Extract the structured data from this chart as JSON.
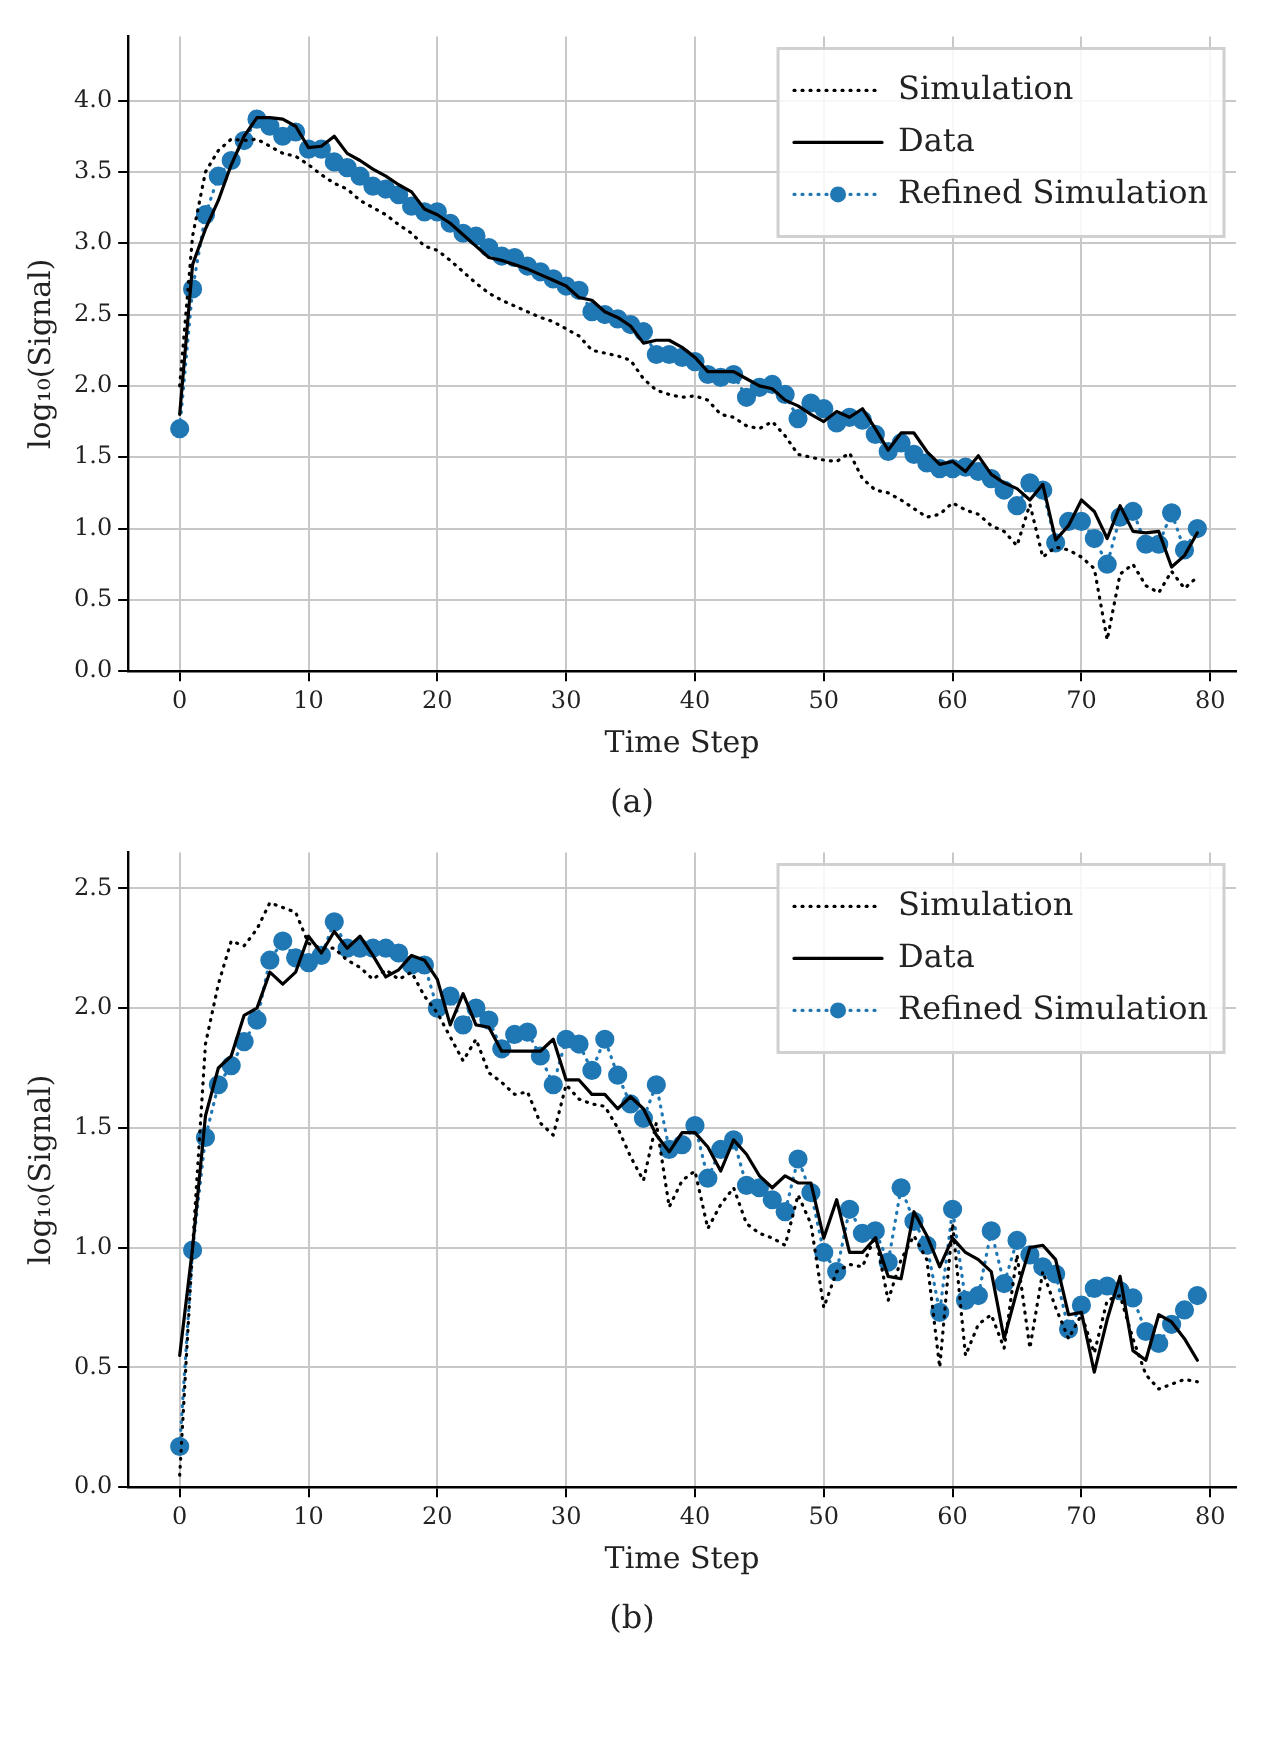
{
  "chart_data": [
    {
      "type": "line",
      "xlabel": "Time Step",
      "ylabel": "log₁₀(Signal)",
      "annotations": [
        "(a)"
      ],
      "grid": true,
      "legend": "top right",
      "xlim": [
        -4,
        82
      ],
      "xticks": [
        0,
        10,
        20,
        30,
        40,
        50,
        60,
        70,
        80
      ],
      "ylim": [
        0,
        4.45
      ],
      "yticks": [
        {
          "value": 0,
          "label": "0.0"
        },
        {
          "value": 0.5,
          "label": "0.5"
        },
        {
          "value": 1,
          "label": "1.0"
        },
        {
          "value": 1.5,
          "label": "1.5"
        },
        {
          "value": 2,
          "label": "2.0"
        },
        {
          "value": 2.5,
          "label": "2.5"
        },
        {
          "value": 3,
          "label": "3.0"
        },
        {
          "value": 3.5,
          "label": "3.5"
        },
        {
          "value": 4,
          "label": "4.0"
        }
      ],
      "x": [
        0,
        1,
        2,
        3,
        4,
        5,
        6,
        7,
        8,
        9,
        10,
        11,
        12,
        13,
        14,
        15,
        16,
        17,
        18,
        19,
        20,
        21,
        22,
        23,
        24,
        25,
        26,
        27,
        28,
        29,
        30,
        31,
        32,
        33,
        34,
        35,
        36,
        37,
        38,
        39,
        40,
        41,
        42,
        43,
        44,
        45,
        46,
        47,
        48,
        49,
        50,
        51,
        52,
        53,
        54,
        55,
        56,
        57,
        58,
        59,
        60,
        61,
        62,
        63,
        64,
        65,
        66,
        67,
        68,
        69,
        70,
        71,
        72,
        73,
        74,
        75,
        76,
        77,
        78,
        79
      ],
      "series": [
        {
          "name": "Simulation",
          "color": "#000000",
          "line_style": "dotted",
          "marker": "none",
          "values": [
            2.0,
            3.05,
            3.5,
            3.65,
            3.73,
            3.72,
            3.73,
            3.68,
            3.63,
            3.61,
            3.55,
            3.48,
            3.42,
            3.38,
            3.3,
            3.25,
            3.2,
            3.13,
            3.07,
            2.98,
            2.95,
            2.88,
            2.8,
            2.72,
            2.65,
            2.6,
            2.56,
            2.52,
            2.48,
            2.45,
            2.4,
            2.35,
            2.25,
            2.23,
            2.21,
            2.18,
            2.05,
            1.97,
            1.94,
            1.92,
            1.93,
            1.9,
            1.8,
            1.78,
            1.72,
            1.7,
            1.75,
            1.65,
            1.52,
            1.5,
            1.48,
            1.47,
            1.53,
            1.35,
            1.27,
            1.25,
            1.2,
            1.14,
            1.08,
            1.1,
            1.18,
            1.13,
            1.1,
            1.02,
            0.98,
            0.88,
            1.17,
            0.8,
            0.87,
            0.85,
            0.8,
            0.72,
            0.22,
            0.68,
            0.75,
            0.6,
            0.55,
            0.7,
            0.58,
            0.66
          ]
        },
        {
          "name": "Data",
          "color": "#000000",
          "line_style": "solid",
          "marker": "none",
          "values": [
            1.8,
            2.85,
            3.1,
            3.3,
            3.55,
            3.75,
            3.88,
            3.88,
            3.87,
            3.82,
            3.67,
            3.68,
            3.75,
            3.63,
            3.58,
            3.52,
            3.47,
            3.41,
            3.36,
            3.24,
            3.2,
            3.14,
            3.06,
            2.98,
            2.9,
            2.88,
            2.85,
            2.82,
            2.78,
            2.74,
            2.7,
            2.62,
            2.6,
            2.52,
            2.48,
            2.42,
            2.3,
            2.32,
            2.32,
            2.27,
            2.2,
            2.1,
            2.1,
            2.1,
            2.05,
            2.0,
            1.98,
            1.9,
            1.86,
            1.8,
            1.75,
            1.82,
            1.78,
            1.84,
            1.7,
            1.55,
            1.67,
            1.67,
            1.54,
            1.45,
            1.47,
            1.4,
            1.51,
            1.38,
            1.32,
            1.28,
            1.2,
            1.31,
            0.92,
            1.02,
            1.2,
            1.12,
            0.93,
            1.16,
            0.98,
            0.97,
            0.98,
            0.73,
            0.81,
            0.97
          ]
        },
        {
          "name": "Refined Simulation",
          "color": "#1f77b4",
          "line_style": "dotted",
          "marker": "circle",
          "values": [
            1.7,
            2.68,
            3.2,
            3.47,
            3.58,
            3.72,
            3.87,
            3.82,
            3.75,
            3.78,
            3.66,
            3.66,
            3.57,
            3.53,
            3.47,
            3.4,
            3.38,
            3.34,
            3.26,
            3.22,
            3.22,
            3.14,
            3.07,
            3.05,
            2.97,
            2.91,
            2.9,
            2.84,
            2.8,
            2.75,
            2.7,
            2.67,
            2.52,
            2.5,
            2.47,
            2.43,
            2.38,
            2.22,
            2.22,
            2.2,
            2.17,
            2.08,
            2.06,
            2.08,
            1.92,
            1.99,
            2.01,
            1.94,
            1.77,
            1.88,
            1.84,
            1.74,
            1.78,
            1.76,
            1.66,
            1.54,
            1.6,
            1.52,
            1.46,
            1.42,
            1.42,
            1.43,
            1.4,
            1.35,
            1.27,
            1.16,
            1.32,
            1.27,
            0.9,
            1.05,
            1.05,
            0.93,
            0.75,
            1.08,
            1.12,
            0.89,
            0.89,
            1.11,
            0.85,
            1.0
          ]
        }
      ]
    },
    {
      "type": "line",
      "xlabel": "Time Step",
      "ylabel": "log₁₀(Signal)",
      "annotations": [
        "(b)"
      ],
      "grid": true,
      "legend": "top right",
      "xlim": [
        -4,
        82
      ],
      "xticks": [
        0,
        10,
        20,
        30,
        40,
        50,
        60,
        70,
        80
      ],
      "ylim": [
        0,
        2.65
      ],
      "yticks": [
        {
          "value": 0,
          "label": "0.0"
        },
        {
          "value": 0.5,
          "label": "0.5"
        },
        {
          "value": 1,
          "label": "1.0"
        },
        {
          "value": 1.5,
          "label": "1.5"
        },
        {
          "value": 2,
          "label": "2.0"
        },
        {
          "value": 2.5,
          "label": "2.5"
        }
      ],
      "x": [
        0,
        1,
        2,
        3,
        4,
        5,
        6,
        7,
        8,
        9,
        10,
        11,
        12,
        13,
        14,
        15,
        16,
        17,
        18,
        19,
        20,
        21,
        22,
        23,
        24,
        25,
        26,
        27,
        28,
        29,
        30,
        31,
        32,
        33,
        34,
        35,
        36,
        37,
        38,
        39,
        40,
        41,
        42,
        43,
        44,
        45,
        46,
        47,
        48,
        49,
        50,
        51,
        52,
        53,
        54,
        55,
        56,
        57,
        58,
        59,
        60,
        61,
        62,
        63,
        64,
        65,
        66,
        67,
        68,
        69,
        70,
        71,
        72,
        73,
        74,
        75,
        76,
        77,
        78,
        79
      ],
      "series": [
        {
          "name": "Simulation",
          "color": "#000000",
          "line_style": "dotted",
          "marker": "none",
          "values": [
            0.05,
            1.0,
            1.85,
            2.1,
            2.28,
            2.26,
            2.33,
            2.44,
            2.42,
            2.4,
            2.27,
            2.25,
            2.25,
            2.2,
            2.17,
            2.12,
            2.16,
            2.12,
            2.15,
            2.05,
            1.98,
            1.88,
            1.78,
            1.87,
            1.73,
            1.69,
            1.64,
            1.65,
            1.52,
            1.47,
            1.68,
            1.62,
            1.6,
            1.59,
            1.5,
            1.38,
            1.28,
            1.52,
            1.17,
            1.28,
            1.32,
            1.08,
            1.18,
            1.25,
            1.1,
            1.06,
            1.04,
            1.01,
            1.22,
            1.1,
            0.75,
            0.9,
            0.93,
            0.92,
            1.05,
            0.78,
            0.95,
            1.05,
            0.95,
            0.5,
            1.1,
            0.55,
            0.68,
            0.72,
            0.58,
            0.97,
            0.58,
            0.9,
            0.75,
            0.62,
            0.72,
            0.56,
            0.78,
            0.8,
            0.62,
            0.47,
            0.41,
            0.43,
            0.45,
            0.44
          ]
        },
        {
          "name": "Data",
          "color": "#000000",
          "line_style": "solid",
          "marker": "none",
          "values": [
            0.55,
            1.0,
            1.55,
            1.75,
            1.8,
            1.97,
            2.0,
            2.15,
            2.1,
            2.15,
            2.3,
            2.23,
            2.32,
            2.25,
            2.3,
            2.22,
            2.13,
            2.16,
            2.22,
            2.2,
            2.12,
            1.93,
            2.06,
            1.93,
            1.92,
            1.82,
            1.82,
            1.82,
            1.82,
            1.87,
            1.7,
            1.7,
            1.64,
            1.64,
            1.58,
            1.63,
            1.58,
            1.47,
            1.4,
            1.48,
            1.48,
            1.42,
            1.32,
            1.45,
            1.39,
            1.3,
            1.25,
            1.3,
            1.27,
            1.27,
            1.04,
            1.2,
            0.98,
            0.98,
            1.04,
            0.88,
            0.87,
            1.15,
            1.05,
            0.92,
            1.04,
            0.98,
            0.95,
            0.9,
            0.62,
            0.82,
            1.0,
            1.01,
            0.95,
            0.72,
            0.73,
            0.48,
            0.7,
            0.88,
            0.57,
            0.53,
            0.72,
            0.69,
            0.62,
            0.53
          ]
        },
        {
          "name": "Refined Simulation",
          "color": "#1f77b4",
          "line_style": "dotted",
          "marker": "circle",
          "values": [
            0.17,
            0.99,
            1.46,
            1.68,
            1.76,
            1.86,
            1.95,
            2.2,
            2.28,
            2.21,
            2.19,
            2.22,
            2.36,
            2.25,
            2.25,
            2.25,
            2.25,
            2.23,
            2.18,
            2.18,
            2.0,
            2.05,
            1.93,
            2.0,
            1.95,
            1.83,
            1.89,
            1.9,
            1.8,
            1.68,
            1.87,
            1.85,
            1.74,
            1.87,
            1.72,
            1.6,
            1.54,
            1.68,
            1.41,
            1.43,
            1.51,
            1.29,
            1.41,
            1.45,
            1.26,
            1.25,
            1.2,
            1.15,
            1.37,
            1.23,
            0.98,
            0.9,
            1.16,
            1.06,
            1.07,
            0.94,
            1.25,
            1.11,
            1.01,
            0.73,
            1.16,
            0.78,
            0.8,
            1.07,
            0.85,
            1.03,
            0.97,
            0.92,
            0.89,
            0.66,
            0.76,
            0.83,
            0.84,
            0.82,
            0.79,
            0.65,
            0.6,
            0.68,
            0.74,
            0.8
          ]
        }
      ]
    }
  ]
}
